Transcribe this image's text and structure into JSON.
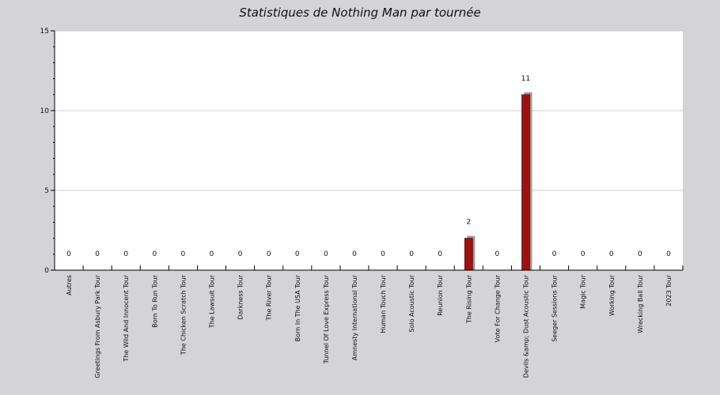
{
  "chart_data": {
    "type": "bar",
    "title": "Statistiques de Nothing Man par tournée",
    "xlabel": "",
    "ylabel": "",
    "ylim": [
      0,
      15
    ],
    "yticks": [
      0,
      5,
      10,
      15
    ],
    "grid": true,
    "categories": [
      "Autres",
      "Greetings From Asbury Park Tour",
      "The Wild And Innocent Tour",
      "Born To Run Tour",
      "The Chicken Scratch Tour",
      "The Lawsuit Tour",
      "Darkness Tour",
      "The River Tour",
      "Born In The USA Tour",
      "Tunnel Of Love Express Tour",
      "Amnesty International Tour",
      "Human Touch Tour",
      "Solo Acoustic Tour",
      "Reunion Tour",
      "The Rising Tour",
      "Vote For Change Tour",
      "Devils &amp; Dust Acoustic Tour",
      "Seeger Sessions Tour",
      "Magic Tour",
      "Working Tour",
      "Wrecking Ball Tour",
      "2023 Tour"
    ],
    "values": [
      0,
      0,
      0,
      0,
      0,
      0,
      0,
      0,
      0,
      0,
      0,
      0,
      0,
      0,
      2,
      0,
      11,
      0,
      0,
      0,
      0,
      0
    ],
    "colors": {
      "bar": "#a01010",
      "bar_shadow": "#9a9a9a",
      "plot_background": "#ffffff",
      "page_background": "#d4d3d8",
      "grid": "#cccccc"
    }
  }
}
